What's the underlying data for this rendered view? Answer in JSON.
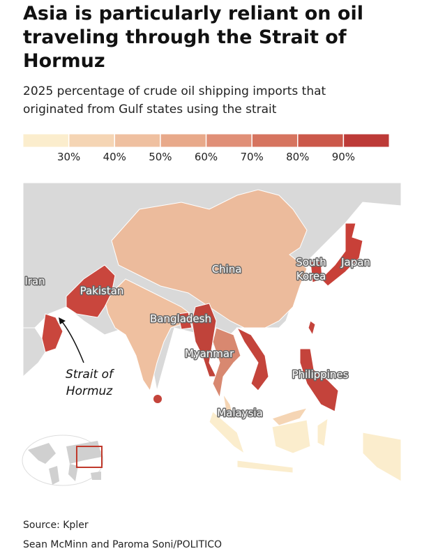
{
  "header": {
    "title_lines": [
      "Asia is particularly reliant on oil",
      "traveling through the Strait of",
      "Hormuz"
    ],
    "subtitle_lines": [
      "2025 percentage of crude oil shipping imports that",
      "originated from Gulf states using the strait"
    ]
  },
  "legend": {
    "range": [
      20,
      100
    ],
    "colors": [
      "#fbedcd",
      "#f5d5b4",
      "#efc0a0",
      "#e8a98a",
      "#e08f77",
      "#d6745f",
      "#cb584a",
      "#bd3a37"
    ],
    "ticks": [
      {
        "value": 30,
        "label": "30%"
      },
      {
        "value": 40,
        "label": "40%"
      },
      {
        "value": 50,
        "label": "50%"
      },
      {
        "value": 60,
        "label": "60%"
      },
      {
        "value": 70,
        "label": "70%"
      },
      {
        "value": 80,
        "label": "80%"
      },
      {
        "value": 90,
        "label": "90%"
      }
    ]
  },
  "map": {
    "labels": {
      "china": "China",
      "south_korea": [
        "South",
        "Korea"
      ],
      "japan": "Japan",
      "iran": "Iran",
      "pakistan": "Pakistan",
      "bangladesh": "Bangladesh",
      "myanmar": "Myanmar",
      "philippines": "Philippines",
      "malaysia": "Malaysia"
    },
    "annotation": [
      "Strait of",
      "Hormuz"
    ]
  },
  "footer": {
    "source": "Source: Kpler",
    "credit": "Sean McMinn and Paroma Soni/POLITICO"
  }
}
